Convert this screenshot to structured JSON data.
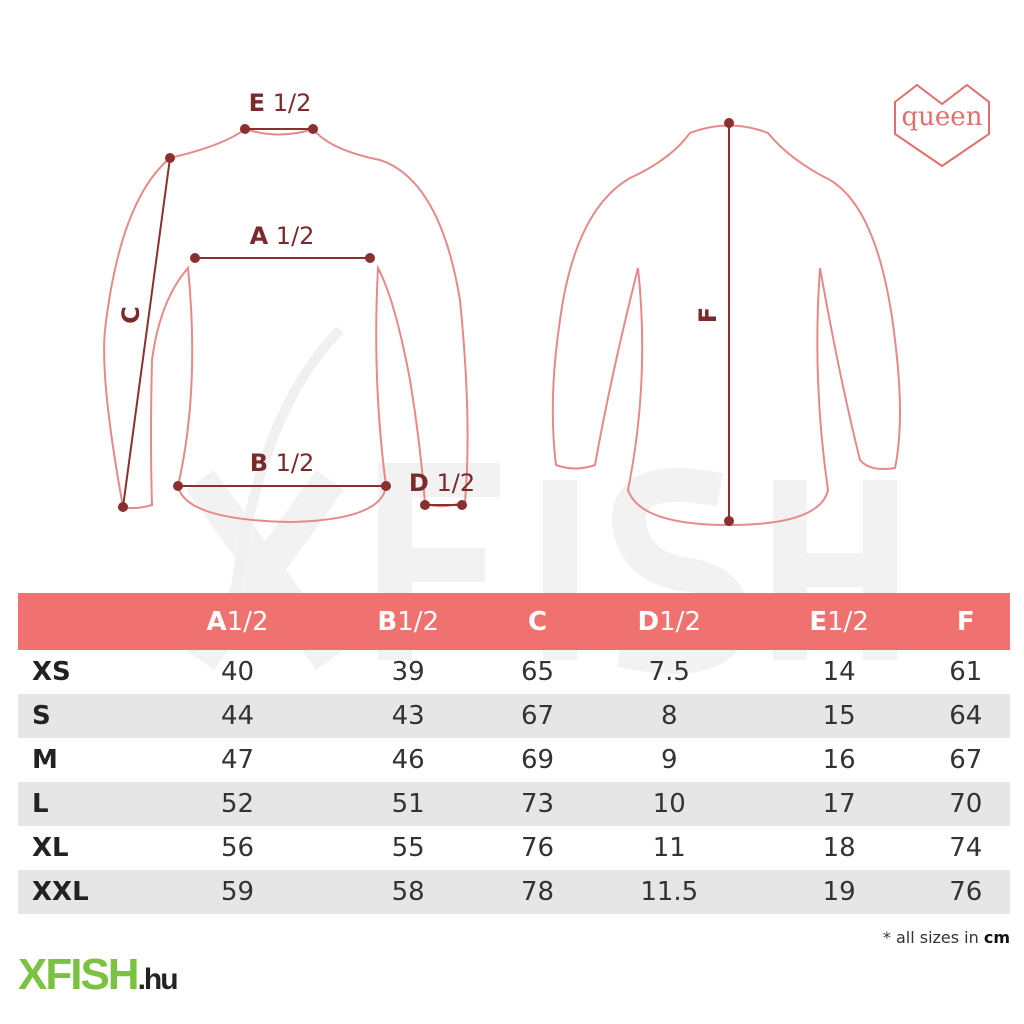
{
  "brand_logo": {
    "text": "queen",
    "color": "#e0706c"
  },
  "site_logo": {
    "main": "XFISH",
    "suffix": ".hu",
    "color": "#7cc242"
  },
  "watermark": "XFISH",
  "diagram": {
    "front_labels": {
      "e": {
        "letter": "E",
        "fraction": "1/2"
      },
      "a": {
        "letter": "A",
        "fraction": "1/2"
      },
      "b": {
        "letter": "B",
        "fraction": "1/2"
      },
      "c": {
        "letter": "C",
        "fraction": ""
      },
      "d": {
        "letter": "D",
        "fraction": "1/2"
      }
    },
    "back_labels": {
      "f": {
        "letter": "F",
        "fraction": ""
      }
    },
    "outline_color": "#e58a88",
    "marker_color": "#8b2f2f"
  },
  "table": {
    "header_color": "#f07270",
    "columns": [
      {
        "letter": "A",
        "fraction": "1/2"
      },
      {
        "letter": "B",
        "fraction": "1/2"
      },
      {
        "letter": "C",
        "fraction": ""
      },
      {
        "letter": "D",
        "fraction": "1/2"
      },
      {
        "letter": "E",
        "fraction": "1/2"
      },
      {
        "letter": "F",
        "fraction": ""
      }
    ],
    "rows": [
      {
        "size": "XS",
        "values": [
          "40",
          "39",
          "65",
          "7.5",
          "14",
          "61"
        ]
      },
      {
        "size": "S",
        "values": [
          "44",
          "43",
          "67",
          "8",
          "15",
          "64"
        ]
      },
      {
        "size": "M",
        "values": [
          "47",
          "46",
          "69",
          "9",
          "16",
          "67"
        ]
      },
      {
        "size": "L",
        "values": [
          "52",
          "51",
          "73",
          "10",
          "17",
          "70"
        ]
      },
      {
        "size": "XL",
        "values": [
          "56",
          "55",
          "76",
          "11",
          "18",
          "74"
        ]
      },
      {
        "size": "XXL",
        "values": [
          "59",
          "58",
          "78",
          "11.5",
          "19",
          "76"
        ]
      }
    ]
  },
  "footnote": {
    "prefix": "* all sizes in ",
    "unit": "cm"
  }
}
